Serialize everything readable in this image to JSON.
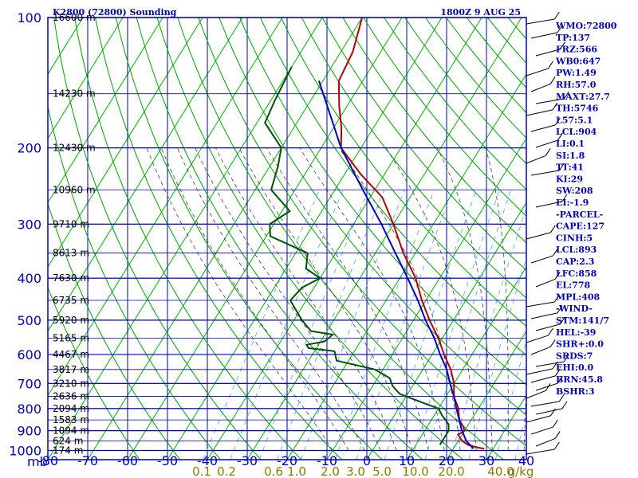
{
  "header": {
    "title": "K2800 (72800) Sounding",
    "valid_time": "1800Z  9 AUG 25"
  },
  "indices": [
    "WMO:72800",
    "TP:137",
    "FRZ:566",
    "WB0:647",
    "PW:1.49",
    "RH:57.0",
    "MAXT:27.7",
    "TH:5746",
    "L57:5.1",
    "LCL:904",
    "LI:0.1",
    "SI:1.8",
    "TT:41",
    "KI:29",
    "SW:208",
    "EI:-1.9",
    "-PARCEL-",
    "CAPE:127",
    "CINH:5",
    "LCL:893",
    "CAP:2.3",
    "LFC:858",
    "EL:778",
    "MPL:408",
    "-WIND-",
    "STM:141/7",
    "HEL:-39",
    "SHR+:0.0",
    "SRDS:7",
    "EHI:0.0",
    "BRN:45.8",
    "BSHR:3"
  ],
  "colors": {
    "isobar": "#0000b0",
    "isotherm": "#00b000",
    "dry_adiabat": "#00a000",
    "moist_adiabat": "#404040",
    "mixing_ratio": "#4aa0ff",
    "temperature": "#b00000",
    "dewpoint": "#005000",
    "parcel": "#0000c0"
  },
  "chart_data": {
    "type": "line",
    "pressure_levels": [
      100,
      200,
      300,
      400,
      500,
      600,
      700,
      800,
      900,
      1000
    ],
    "pressure_unit_label": "mb",
    "temperature_ticks": [
      -80,
      -70,
      -60,
      -50,
      -40,
      -30,
      -20,
      -10,
      0,
      10,
      20,
      30,
      40
    ],
    "xlim": [
      -80,
      50
    ],
    "ylim": [
      1000,
      100
    ],
    "y_scale": "log",
    "grid": true,
    "height_labels": [
      {
        "p": 100,
        "label": "16600 m"
      },
      {
        "p": 150,
        "label": "14230 m"
      },
      {
        "p": 200,
        "label": "12430 m"
      },
      {
        "p": 250,
        "label": "10960 m"
      },
      {
        "p": 300,
        "label": "9710 m"
      },
      {
        "p": 350,
        "label": "8613 m"
      },
      {
        "p": 400,
        "label": "7630 m"
      },
      {
        "p": 450,
        "label": "6735 m"
      },
      {
        "p": 500,
        "label": "5920 m"
      },
      {
        "p": 550,
        "label": "5165 m"
      },
      {
        "p": 600,
        "label": "4467 m"
      },
      {
        "p": 650,
        "label": "3817 m"
      },
      {
        "p": 700,
        "label": "3210 m"
      },
      {
        "p": 750,
        "label": "2636 m"
      },
      {
        "p": 800,
        "label": "2094 m"
      },
      {
        "p": 850,
        "label": "1583 m"
      },
      {
        "p": 900,
        "label": "1094 m"
      },
      {
        "p": 950,
        "label": "624 m"
      },
      {
        "p": 1000,
        "label": "174 m"
      }
    ],
    "mixing_ratio_labels": [
      "0.1",
      "0.2",
      "0.6",
      "1.0",
      "2.0",
      "3.0",
      "5.0",
      "10.0",
      "20.0",
      "40.0",
      "g/kg"
    ],
    "series": [
      {
        "name": "temperature",
        "points": [
          [
            100,
            -70
          ],
          [
            120,
            -67
          ],
          [
            140,
            -66
          ],
          [
            160,
            -62
          ],
          [
            180,
            -58
          ],
          [
            200,
            -55
          ],
          [
            230,
            -46
          ],
          [
            260,
            -37
          ],
          [
            300,
            -30
          ],
          [
            350,
            -23
          ],
          [
            400,
            -16
          ],
          [
            450,
            -11
          ],
          [
            500,
            -6
          ],
          [
            550,
            -1
          ],
          [
            600,
            3
          ],
          [
            650,
            7
          ],
          [
            700,
            10
          ],
          [
            750,
            12
          ],
          [
            800,
            15
          ],
          [
            850,
            17
          ],
          [
            880,
            19
          ],
          [
            900,
            20
          ],
          [
            920,
            19
          ],
          [
            950,
            21
          ],
          [
            970,
            23
          ],
          [
            985,
            26
          ],
          [
            990,
            27.7
          ]
        ]
      },
      {
        "name": "dewpoint",
        "points": [
          [
            130,
            -80
          ],
          [
            155,
            -79
          ],
          [
            175,
            -78
          ],
          [
            200,
            -70
          ],
          [
            220,
            -68
          ],
          [
            250,
            -66
          ],
          [
            280,
            -58
          ],
          [
            300,
            -61
          ],
          [
            320,
            -59
          ],
          [
            350,
            -47
          ],
          [
            380,
            -45
          ],
          [
            400,
            -40
          ],
          [
            420,
            -43
          ],
          [
            450,
            -44
          ],
          [
            500,
            -38
          ],
          [
            530,
            -34
          ],
          [
            540,
            -28
          ],
          [
            560,
            -29
          ],
          [
            570,
            -33
          ],
          [
            580,
            -32
          ],
          [
            590,
            -25
          ],
          [
            620,
            -23
          ],
          [
            650,
            -12
          ],
          [
            680,
            -7
          ],
          [
            710,
            -5
          ],
          [
            740,
            -2
          ],
          [
            780,
            6
          ],
          [
            800,
            10
          ],
          [
            830,
            12
          ],
          [
            870,
            15
          ],
          [
            900,
            16
          ],
          [
            950,
            16
          ],
          [
            970,
            16
          ]
        ]
      },
      {
        "name": "parcel",
        "points": [
          [
            140,
            -71
          ],
          [
            200,
            -55
          ],
          [
            250,
            -43
          ],
          [
            300,
            -33
          ],
          [
            350,
            -25
          ],
          [
            400,
            -18
          ],
          [
            450,
            -12
          ],
          [
            500,
            -7
          ],
          [
            550,
            -2
          ],
          [
            600,
            2
          ],
          [
            650,
            6
          ],
          [
            700,
            9
          ],
          [
            750,
            12
          ],
          [
            800,
            14.5
          ],
          [
            850,
            17
          ],
          [
            893,
            19
          ],
          [
            950,
            22
          ],
          [
            990,
            25
          ]
        ]
      }
    ]
  }
}
